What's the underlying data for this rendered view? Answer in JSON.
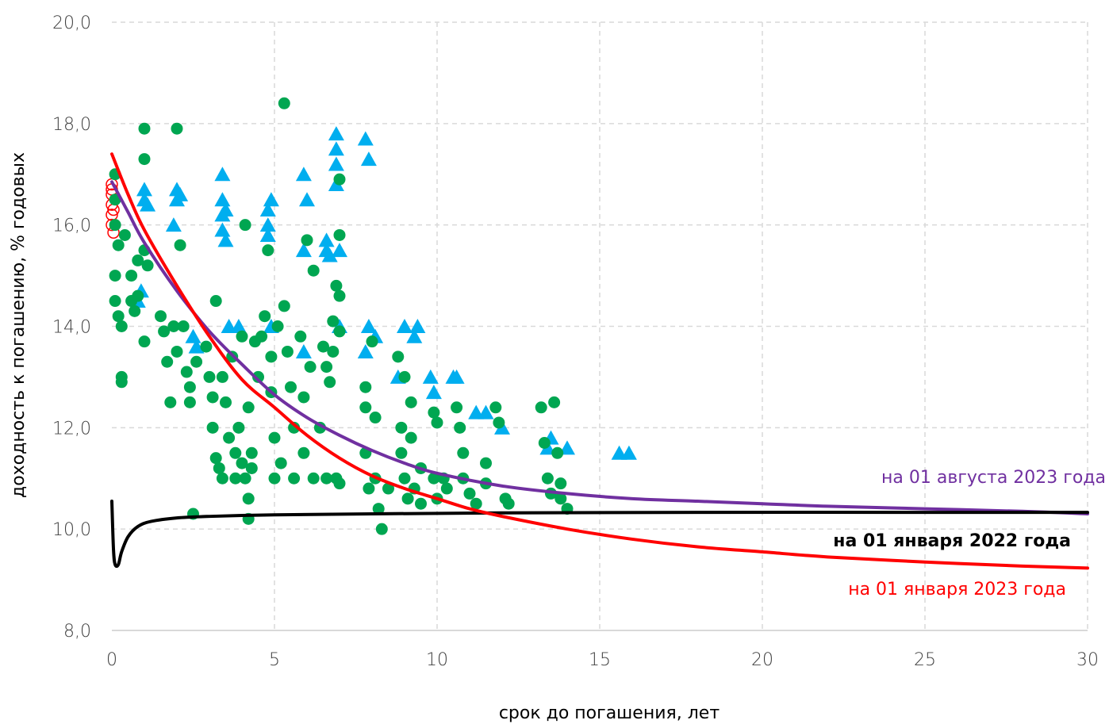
{
  "chart_data": {
    "type": "scatter",
    "title": "",
    "xlabel": "срок до погашения, лет",
    "ylabel": "доходность к погашению, % годовых",
    "xlim": [
      0,
      30
    ],
    "ylim": [
      8.0,
      20.0
    ],
    "x_ticks": [
      "0",
      "5",
      "10",
      "15",
      "20",
      "25",
      "30"
    ],
    "y_ticks": [
      "8,0",
      "10,0",
      "12,0",
      "14,0",
      "16,0",
      "18,0",
      "20,0"
    ],
    "grid": true,
    "colors": {
      "green_points": "#00a651",
      "blue_points": "#00aeef",
      "red_open_points": "#ff0000",
      "curve_aug_2023": "#7030a0",
      "curve_jan_2022": "#000000",
      "curve_jan_2023": "#ff0000",
      "grid": "#d9d9d9"
    },
    "curves": [
      {
        "label": "на 01 августа  2023 года",
        "color": "#7030a0",
        "points": [
          [
            0,
            16.85
          ],
          [
            0.5,
            16.25
          ],
          [
            1,
            15.65
          ],
          [
            2,
            14.7
          ],
          [
            3,
            13.9
          ],
          [
            4,
            13.25
          ],
          [
            5,
            12.65
          ],
          [
            6,
            12.2
          ],
          [
            7,
            11.85
          ],
          [
            8,
            11.55
          ],
          [
            9,
            11.3
          ],
          [
            10,
            11.1
          ],
          [
            12,
            10.85
          ],
          [
            14,
            10.7
          ],
          [
            16,
            10.6
          ],
          [
            18,
            10.55
          ],
          [
            20,
            10.5
          ],
          [
            22,
            10.45
          ],
          [
            25,
            10.4
          ],
          [
            28,
            10.35
          ],
          [
            30,
            10.3
          ]
        ]
      },
      {
        "label": "на 01 января 2022 года",
        "color": "#000000",
        "points": [
          [
            0,
            10.55
          ],
          [
            0.05,
            9.6
          ],
          [
            0.1,
            9.3
          ],
          [
            0.2,
            9.3
          ],
          [
            0.3,
            9.55
          ],
          [
            0.5,
            9.85
          ],
          [
            0.8,
            10.05
          ],
          [
            1.2,
            10.15
          ],
          [
            2,
            10.22
          ],
          [
            3,
            10.25
          ],
          [
            5,
            10.28
          ],
          [
            8,
            10.3
          ],
          [
            12,
            10.32
          ],
          [
            18,
            10.33
          ],
          [
            25,
            10.33
          ],
          [
            30,
            10.33
          ]
        ]
      },
      {
        "label": "на 01  января 2023 года",
        "color": "#ff0000",
        "points": [
          [
            0,
            17.4
          ],
          [
            0.5,
            16.6
          ],
          [
            1,
            15.9
          ],
          [
            2,
            14.8
          ],
          [
            3,
            13.8
          ],
          [
            4,
            12.95
          ],
          [
            5,
            12.4
          ],
          [
            6,
            11.85
          ],
          [
            7,
            11.4
          ],
          [
            8,
            11.05
          ],
          [
            9,
            10.8
          ],
          [
            10,
            10.6
          ],
          [
            11,
            10.4
          ],
          [
            12,
            10.25
          ],
          [
            14,
            10.0
          ],
          [
            16,
            9.8
          ],
          [
            18,
            9.65
          ],
          [
            20,
            9.55
          ],
          [
            22,
            9.45
          ],
          [
            25,
            9.35
          ],
          [
            28,
            9.27
          ],
          [
            30,
            9.23
          ]
        ]
      }
    ],
    "series": [
      {
        "marker": "triangle",
        "color": "#00aeef",
        "points": [
          [
            0.8,
            14.5
          ],
          [
            0.9,
            14.7
          ],
          [
            1,
            16.5
          ],
          [
            1,
            16.7
          ],
          [
            1.1,
            16.4
          ],
          [
            1.9,
            16.0
          ],
          [
            2,
            16.5
          ],
          [
            2,
            16.7
          ],
          [
            2.1,
            16.6
          ],
          [
            2.5,
            13.8
          ],
          [
            2.6,
            13.6
          ],
          [
            3.4,
            17.0
          ],
          [
            3.4,
            16.5
          ],
          [
            3.4,
            16.2
          ],
          [
            3.4,
            15.9
          ],
          [
            3.5,
            15.7
          ],
          [
            3.5,
            16.3
          ],
          [
            3.6,
            14.0
          ],
          [
            3.9,
            14.0
          ],
          [
            4.8,
            16.3
          ],
          [
            4.8,
            16.0
          ],
          [
            4.8,
            15.8
          ],
          [
            4.9,
            16.5
          ],
          [
            4.9,
            14.0
          ],
          [
            5.9,
            17.0
          ],
          [
            5.9,
            15.5
          ],
          [
            6.0,
            16.5
          ],
          [
            5.9,
            13.5
          ],
          [
            6.6,
            15.7
          ],
          [
            6.6,
            15.5
          ],
          [
            6.7,
            15.4
          ],
          [
            6.9,
            17.8
          ],
          [
            6.9,
            17.5
          ],
          [
            6.9,
            17.2
          ],
          [
            6.9,
            16.8
          ],
          [
            7.0,
            15.5
          ],
          [
            7.0,
            14.0
          ],
          [
            7.8,
            17.7
          ],
          [
            7.9,
            17.3
          ],
          [
            7.9,
            14.0
          ],
          [
            7.8,
            13.5
          ],
          [
            8.1,
            13.8
          ],
          [
            8.8,
            13.0
          ],
          [
            9.0,
            14.0
          ],
          [
            9.3,
            13.8
          ],
          [
            9.4,
            14.0
          ],
          [
            9.8,
            13.0
          ],
          [
            9.9,
            12.7
          ],
          [
            10.5,
            13.0
          ],
          [
            10.6,
            13.0
          ],
          [
            11.2,
            12.3
          ],
          [
            11.5,
            12.3
          ],
          [
            12.0,
            12.0
          ],
          [
            13.4,
            11.6
          ],
          [
            13.5,
            11.8
          ],
          [
            14.0,
            11.6
          ],
          [
            15.6,
            11.5
          ],
          [
            15.9,
            11.5
          ]
        ]
      },
      {
        "marker": "open-circle",
        "color": "#ff0000",
        "points": [
          [
            0.0,
            16.8
          ],
          [
            0.0,
            16.6
          ],
          [
            0.0,
            16.4
          ],
          [
            0.0,
            16.2
          ],
          [
            0.0,
            16.0
          ],
          [
            0.05,
            15.85
          ],
          [
            0.0,
            16.7
          ],
          [
            0.05,
            16.3
          ]
        ]
      },
      {
        "marker": "circle",
        "color": "#00a651",
        "points": [
          [
            0.1,
            17.0
          ],
          [
            0.1,
            16.5
          ],
          [
            0.1,
            16.0
          ],
          [
            0.1,
            15.0
          ],
          [
            0.1,
            14.5
          ],
          [
            0.2,
            14.2
          ],
          [
            0.3,
            14.0
          ],
          [
            0.2,
            15.6
          ],
          [
            0.3,
            13.0
          ],
          [
            0.3,
            12.9
          ],
          [
            0.4,
            15.8
          ],
          [
            0.6,
            15.0
          ],
          [
            0.6,
            14.5
          ],
          [
            0.7,
            14.3
          ],
          [
            0.8,
            15.3
          ],
          [
            0.8,
            14.6
          ],
          [
            1.0,
            17.9
          ],
          [
            1.0,
            17.3
          ],
          [
            1.0,
            15.5
          ],
          [
            1.0,
            13.7
          ],
          [
            1.1,
            15.2
          ],
          [
            1.5,
            14.2
          ],
          [
            1.6,
            13.9
          ],
          [
            1.7,
            13.3
          ],
          [
            1.8,
            12.5
          ],
          [
            1.9,
            14.0
          ],
          [
            2.0,
            17.9
          ],
          [
            2.0,
            13.5
          ],
          [
            2.1,
            15.6
          ],
          [
            2.2,
            14.0
          ],
          [
            2.3,
            13.1
          ],
          [
            2.4,
            12.8
          ],
          [
            2.4,
            12.5
          ],
          [
            2.5,
            10.3
          ],
          [
            2.6,
            13.3
          ],
          [
            2.9,
            13.6
          ],
          [
            3.0,
            13.0
          ],
          [
            3.1,
            12.6
          ],
          [
            3.1,
            12.0
          ],
          [
            3.2,
            14.5
          ],
          [
            3.2,
            11.4
          ],
          [
            3.3,
            11.2
          ],
          [
            3.4,
            13.0
          ],
          [
            3.4,
            11.0
          ],
          [
            3.5,
            12.5
          ],
          [
            3.6,
            11.8
          ],
          [
            3.7,
            13.4
          ],
          [
            3.8,
            11.5
          ],
          [
            3.8,
            11.0
          ],
          [
            3.9,
            12.0
          ],
          [
            4.0,
            13.8
          ],
          [
            4.0,
            11.3
          ],
          [
            4.1,
            11.0
          ],
          [
            4.1,
            16.0
          ],
          [
            4.2,
            12.4
          ],
          [
            4.2,
            10.6
          ],
          [
            4.2,
            10.2
          ],
          [
            4.3,
            11.5
          ],
          [
            4.3,
            11.2
          ],
          [
            4.4,
            13.7
          ],
          [
            4.5,
            13.0
          ],
          [
            4.6,
            13.8
          ],
          [
            4.7,
            14.2
          ],
          [
            4.8,
            15.5
          ],
          [
            4.9,
            13.4
          ],
          [
            4.9,
            12.7
          ],
          [
            5.0,
            11.8
          ],
          [
            5.0,
            11.0
          ],
          [
            5.1,
            14.0
          ],
          [
            5.2,
            11.3
          ],
          [
            5.3,
            18.4
          ],
          [
            5.3,
            14.4
          ],
          [
            5.4,
            13.5
          ],
          [
            5.5,
            12.8
          ],
          [
            5.6,
            12.0
          ],
          [
            5.6,
            11.0
          ],
          [
            5.8,
            13.8
          ],
          [
            5.9,
            12.6
          ],
          [
            5.9,
            11.5
          ],
          [
            6.0,
            15.7
          ],
          [
            6.1,
            13.2
          ],
          [
            6.2,
            15.1
          ],
          [
            6.2,
            11.0
          ],
          [
            6.4,
            12.0
          ],
          [
            6.5,
            13.6
          ],
          [
            6.6,
            13.2
          ],
          [
            6.6,
            11.0
          ],
          [
            6.7,
            12.9
          ],
          [
            6.8,
            14.1
          ],
          [
            6.8,
            13.5
          ],
          [
            6.9,
            14.8
          ],
          [
            6.9,
            11.0
          ],
          [
            7.0,
            16.9
          ],
          [
            7.0,
            15.8
          ],
          [
            7.0,
            14.6
          ],
          [
            7.0,
            13.9
          ],
          [
            7.0,
            10.9
          ],
          [
            7.8,
            12.8
          ],
          [
            7.8,
            12.4
          ],
          [
            7.8,
            11.5
          ],
          [
            7.9,
            10.8
          ],
          [
            8.0,
            13.7
          ],
          [
            8.1,
            12.2
          ],
          [
            8.1,
            11.0
          ],
          [
            8.2,
            10.4
          ],
          [
            8.3,
            10.0
          ],
          [
            8.5,
            10.8
          ],
          [
            8.8,
            13.4
          ],
          [
            8.9,
            12.0
          ],
          [
            8.9,
            11.5
          ],
          [
            9.0,
            13.0
          ],
          [
            9.0,
            11.0
          ],
          [
            9.1,
            10.6
          ],
          [
            9.2,
            12.5
          ],
          [
            9.2,
            11.8
          ],
          [
            9.3,
            10.8
          ],
          [
            9.5,
            11.2
          ],
          [
            9.5,
            10.5
          ],
          [
            9.9,
            12.3
          ],
          [
            9.9,
            11.0
          ],
          [
            10.0,
            12.1
          ],
          [
            10.0,
            10.6
          ],
          [
            10.2,
            11.0
          ],
          [
            10.3,
            10.8
          ],
          [
            10.6,
            12.4
          ],
          [
            10.7,
            12.0
          ],
          [
            10.8,
            11.5
          ],
          [
            10.8,
            11.0
          ],
          [
            11.0,
            10.7
          ],
          [
            11.2,
            10.5
          ],
          [
            11.5,
            11.3
          ],
          [
            11.5,
            10.9
          ],
          [
            11.8,
            12.4
          ],
          [
            11.9,
            12.1
          ],
          [
            12.1,
            10.6
          ],
          [
            12.2,
            10.5
          ],
          [
            13.2,
            12.4
          ],
          [
            13.3,
            11.7
          ],
          [
            13.4,
            11.0
          ],
          [
            13.5,
            10.7
          ],
          [
            13.6,
            12.5
          ],
          [
            13.7,
            11.5
          ],
          [
            13.8,
            10.9
          ],
          [
            13.8,
            10.6
          ],
          [
            14.0,
            10.4
          ]
        ]
      }
    ],
    "legend": "inline-labels-right"
  }
}
